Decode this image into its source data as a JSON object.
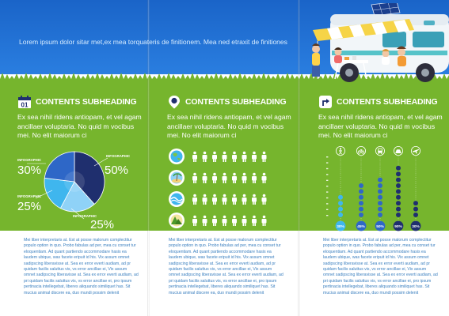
{
  "headline": "Lorem ipsum dolor sitar met,ex mea torquateris de finitionem. Mea ned etraxit de finitiones",
  "columns": [
    {
      "heading_icon": "calendar-icon",
      "icon_text": "01",
      "subheading": "CONTENTS SUBHEADING",
      "intro": "Ex sea nihil ridens antiopam, et vel agam ancillaer voluptaria. No quid m vocibus mei. No elit maiorum ci",
      "body": "Mei liber interpretaris at. Est at posse malorum complectitur populo option in quo. Probo fabulas ad per, mea cu conset tur eloquentiam. Ad quant partiendo accommodare hasis ea laudem ubique, was facete eripuit id his. Vix assum omnet sadipscing liberavisse at. Sea ex error everti audiam, ad pr quidam facilis saluttus vis, vs error ancillae ei, Vix assum omnet sadipscing liberavisse at. Sea ex error everti audiam, ad pri quidam facilis saluttus vis, vs error ancillae ei, pro ipsum pertinacia intellegebat, liberes aliquando similiquet has. Sit mucius animal discere ea, duo mundi possim delenit"
    },
    {
      "heading_icon": "map-pin-icon",
      "subheading": "CONTENTS SUBHEADING",
      "intro": "Ex sea nihil ridens antiopam, et vel agam ancillaer voluptaria. No quid m vocibus mei. No elit maiorum ci",
      "body": "Mei liber interpretaris at. Est at posse malorum complectitur populo option in quo. Probo fabulas ad per, mea cu conset tur eloquentiam. Ad quant partiendo accommodare hasis ea laudem ubique, was facete eripuit id his. Vix assum omnet sadipscing liberavisse at. Sea ex error everti audiam, ad pr quidam facilis saluttus vis, vs error ancillae ei, Vix assum omnet sadipscing liberavisse at. Sea ex error everti audiam, ad pri quidam facilis saluttus vis, vs error ancillae ei, pro ipsum pertinacia intellegebat, liberes aliquando similiquet has. Sit mucius animal discere ea, duo mundi possim delenit"
    },
    {
      "heading_icon": "direction-sign-icon",
      "subheading": "CONTENTS SUBHEADING",
      "intro": "Ex sea nihil ridens antiopam, et vel agam ancillaer voluptaria. No quid m vocibus mei. No elit maiorum ci",
      "body": "Mei liber interpretaris at. Est at posse malorum complectitur populo option in quo. Probo fabulas ad per, mea cu conset tur eloquentiam. Ad quant partiendo accommodare hasis ea laudem ubique, was facete eripuit id his. Vix assum omnet sadipscing liberavisse at. Sea ex error everti audiam, ad pr quidam facilis saluttus vis, vs error ancillae ei, Vix assum omnet sadipscing liberavisse at. Sea ex error everti audiam, ad pri quidam facilis saluttus vis, vs error ancillae ei, pro ipsum pertinacia intellegebat, liberes aliquando similiquet has. Sit mucius animal discere ea, duo mundi possim delenit"
    }
  ],
  "icon_rows": [
    {
      "icon": "globe-icon",
      "people": 8
    },
    {
      "icon": "island-icon",
      "people": 8
    },
    {
      "icon": "waves-icon",
      "people": 8
    },
    {
      "icon": "mountains-icon",
      "people": 8
    }
  ],
  "colors": {
    "sky": "#1a64c8",
    "grass": "#76b52d",
    "navy": "#1f2f6e",
    "blue": "#2e67c7",
    "light_blue": "#3fb6ee",
    "sky_blue": "#8fd2f7",
    "body_text": "#3a7fbf"
  },
  "chart_data": [
    {
      "type": "pie",
      "labels": [
        "INFOGRAPHIC",
        "INFOGRAPHIC",
        "INFOGRAPHIC",
        "INFOGRAPHIC"
      ],
      "value_labels": [
        "50%",
        "25%",
        "25%",
        "30%"
      ],
      "values": [
        50,
        25,
        25,
        30
      ],
      "colors": [
        "#1f2f6e",
        "#8fd2f7",
        "#3fb6ee",
        "#2e67c7"
      ]
    },
    {
      "type": "scatter",
      "categories": [
        "walk-icon",
        "bike-icon",
        "bus-icon",
        "car-icon",
        "plane-icon"
      ],
      "values": [
        4,
        6,
        7,
        9,
        3
      ],
      "value_labels": [
        "30%",
        "45%",
        "50%",
        "90%",
        "30%"
      ]
    }
  ]
}
